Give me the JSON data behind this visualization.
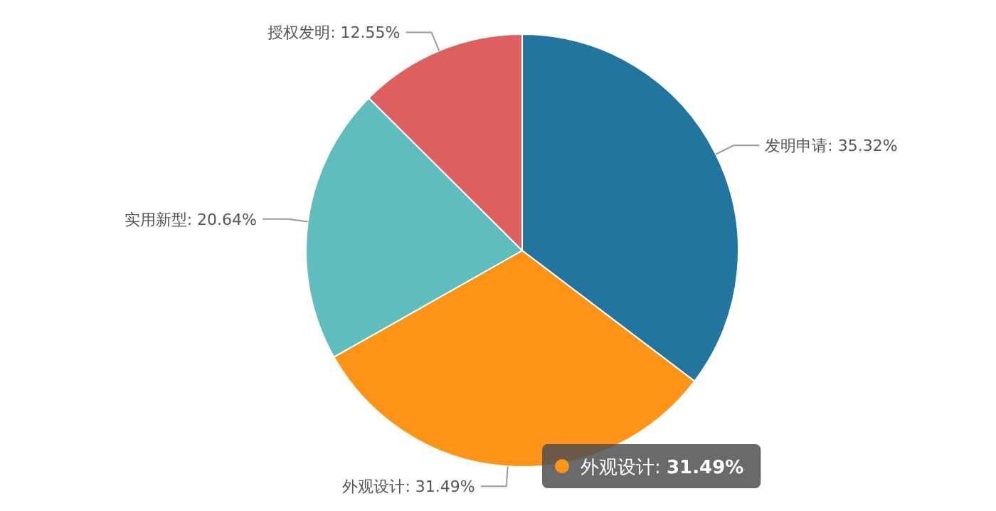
{
  "chart_data": {
    "type": "pie",
    "categories": [
      "发明申请",
      "外观设计",
      "实用新型",
      "授权发明"
    ],
    "values": [
      35.32,
      31.49,
      20.64,
      12.55
    ],
    "value_labels": [
      "35.32%",
      "31.49%",
      "20.64%",
      "12.55%"
    ],
    "colors": [
      "#22759f",
      "#fe9416",
      "#5fbdbd",
      "#df5f5f"
    ],
    "annotations": [
      {
        "text": "外观设计: **31.49%**",
        "x": "外观设计"
      }
    ]
  }
}
